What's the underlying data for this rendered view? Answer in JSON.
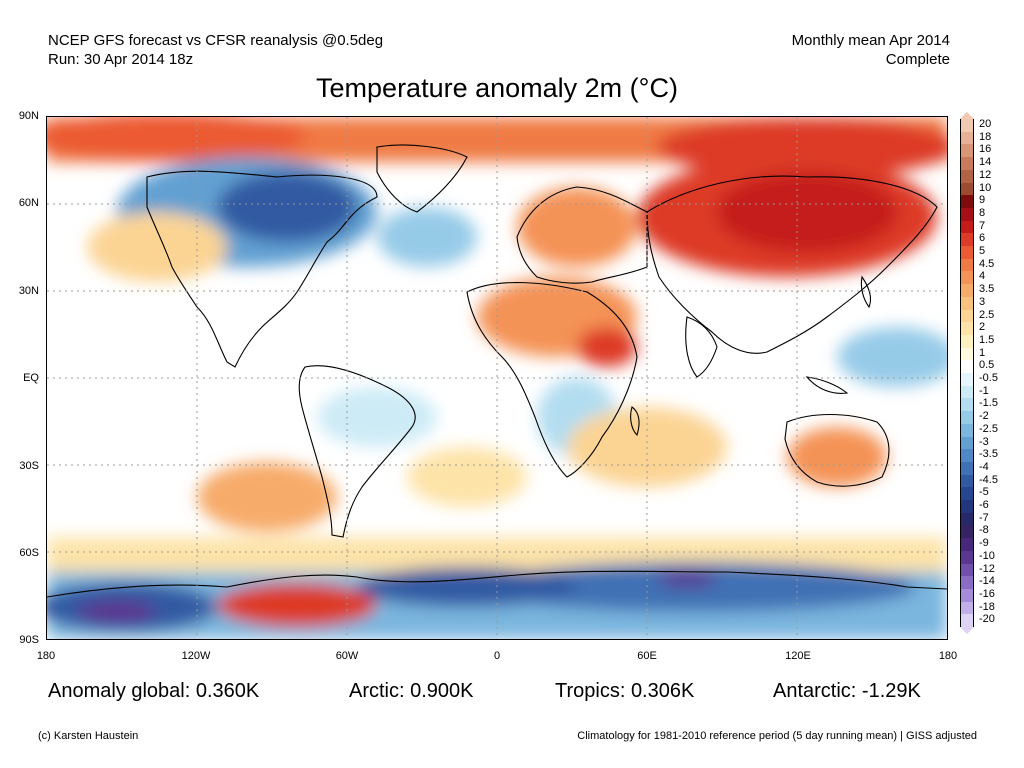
{
  "header": {
    "left_line1": "NCEP GFS forecast vs CFSR reanalysis @0.5deg",
    "left_line2": "Run: 30 Apr 2014 18z",
    "right_line1": "Monthly mean Apr 2014",
    "right_line2": "Complete"
  },
  "title": "Temperature anomaly 2m (°C)",
  "axes": {
    "lat_labels": [
      "90N",
      "60N",
      "30N",
      "EQ",
      "30S",
      "60S",
      "90S"
    ],
    "lon_labels": [
      "180",
      "120W",
      "60W",
      "0",
      "60E",
      "120E",
      "180"
    ]
  },
  "colorbar": {
    "labels": [
      "20",
      "18",
      "16",
      "14",
      "12",
      "10",
      "9",
      "8",
      "7",
      "6",
      "5",
      "4.5",
      "4",
      "3.5",
      "3",
      "2.5",
      "2",
      "1.5",
      "1",
      "0.5",
      "-0.5",
      "-1",
      "-1.5",
      "-2",
      "-2.5",
      "-3",
      "-3.5",
      "-4",
      "-4.5",
      "-5",
      "-6",
      "-7",
      "-8",
      "-9",
      "-10",
      "-12",
      "-14",
      "-16",
      "-18",
      "-20"
    ],
    "colors": [
      "#f2c9b0",
      "#e8b094",
      "#d99677",
      "#c77b5c",
      "#b36345",
      "#9c4a30",
      "#7f0c0c",
      "#a50f15",
      "#c51b1b",
      "#dd3a27",
      "#eb5a33",
      "#f07a45",
      "#f49357",
      "#f7ab6a",
      "#f9c17f",
      "#fbd494",
      "#fde3a8",
      "#fff0c0",
      "#fffadf",
      "#ffffff",
      "#e6f5fb",
      "#cdebf6",
      "#b2ddf0",
      "#96cbe8",
      "#7ab6de",
      "#62a0d2",
      "#4f88c4",
      "#4071b4",
      "#325aa3",
      "#264690",
      "#22367c",
      "#262868",
      "#352363",
      "#47287a",
      "#5b3791",
      "#7150ac",
      "#8a6cc4",
      "#a68bd8",
      "#c2aee8",
      "#ddd3f5"
    ]
  },
  "stats": {
    "global": "Anomaly global: 0.360K",
    "arctic": "Arctic: 0.900K",
    "tropics": "Tropics: 0.306K",
    "antarctic": "Antarctic: -1.29K"
  },
  "footer": {
    "credit": "(c) Karsten Haustein",
    "note": "Climatology for 1981-2010 reference period (5 day running mean) | GISS adjusted"
  },
  "colors": {
    "warm_strong": "#d7301f",
    "warm": "#f4a35a",
    "warm_light": "#fde0b0",
    "neutral": "#ffffff",
    "cool_light": "#cfe8f5",
    "cool": "#6aa6d6",
    "cold": "#2f5aa8",
    "very_cold": "#3f2a8a"
  }
}
